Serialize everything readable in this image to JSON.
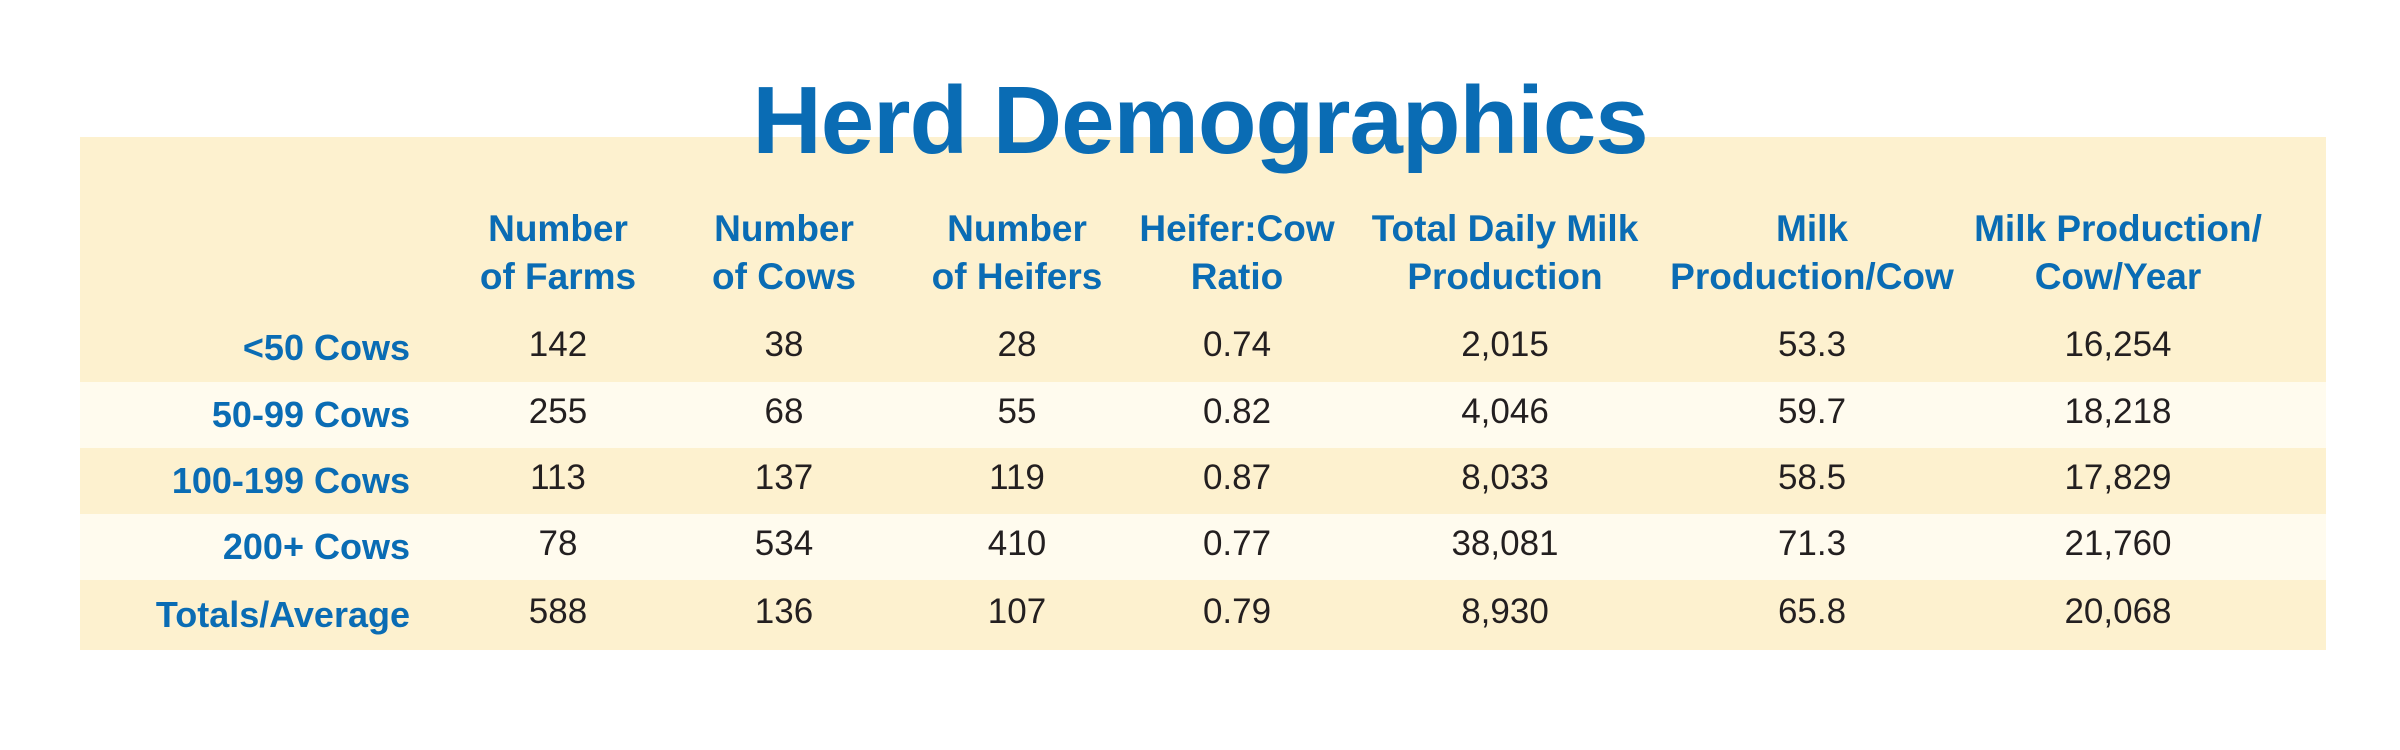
{
  "title": "Herd Demographics",
  "colors": {
    "title": "#0a6cb4",
    "panel_background": "#fdf1cf",
    "alternate_row": "#fffbee",
    "body_text": "#231f20"
  },
  "chart_data": {
    "type": "table",
    "title": "Herd Demographics",
    "columns": [
      "Number\nof Farms",
      "Number\nof Cows",
      "Number\nof Heifers",
      "Heifer:Cow\nRatio",
      "Total Daily Milk\nProduction",
      "Milk\nProduction/Cow",
      "Milk Production/\nCow/Year"
    ],
    "rows": [
      {
        "label": "<50 Cows",
        "values": [
          "142",
          "38",
          "28",
          "0.74",
          "2,015",
          "53.3",
          "16,254"
        ]
      },
      {
        "label": "50-99 Cows",
        "values": [
          "255",
          "68",
          "55",
          "0.82",
          "4,046",
          "59.7",
          "18,218"
        ]
      },
      {
        "label": "100-199 Cows",
        "values": [
          "113",
          "137",
          "119",
          "0.87",
          "8,033",
          "58.5",
          "17,829"
        ]
      },
      {
        "label": "200+ Cows",
        "values": [
          "78",
          "534",
          "410",
          "0.77",
          "38,081",
          "71.3",
          "21,760"
        ]
      },
      {
        "label": "Totals/Average",
        "values": [
          "588",
          "136",
          "107",
          "0.79",
          "8,930",
          "65.8",
          "20,068"
        ]
      }
    ]
  }
}
